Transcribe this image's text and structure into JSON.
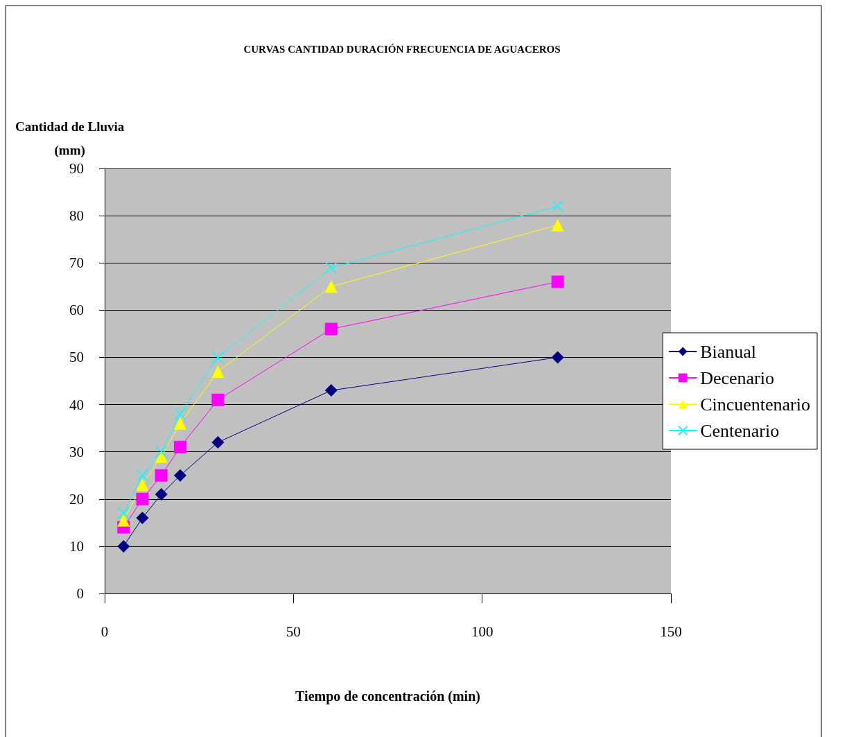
{
  "chart_data": {
    "type": "line",
    "title": "CURVAS CANTIDAD DURACIÓN FRECUENCIA DE AGUACEROS",
    "xlabel": "Tiempo de concentración (min)",
    "ylabel": "Cantidad de Lluvia\n(mm)",
    "x": [
      5,
      10,
      15,
      20,
      30,
      60,
      120
    ],
    "series": [
      {
        "name": "Bianual",
        "color": "#000080",
        "marker": "diamond",
        "values": [
          10,
          16,
          21,
          25,
          32,
          43,
          50
        ]
      },
      {
        "name": "Decenario",
        "color": "#ff00ff",
        "marker": "square",
        "values": [
          14,
          20,
          25,
          31,
          41,
          56,
          66
        ]
      },
      {
        "name": "Cincuentenario",
        "color": "#ffff00",
        "marker": "triangle",
        "values": [
          15.5,
          23,
          29,
          36,
          47,
          65,
          78
        ]
      },
      {
        "name": "Centenario",
        "color": "#00ffff",
        "marker": "cross",
        "values": [
          17,
          25,
          30,
          38,
          50,
          69,
          82
        ]
      }
    ],
    "xlim": [
      0,
      150
    ],
    "xticks": [
      0,
      50,
      100,
      150
    ],
    "ylim": [
      0,
      90
    ],
    "yticks": [
      0,
      10,
      20,
      30,
      40,
      50,
      60,
      70,
      80,
      90
    ],
    "grid": "y",
    "legend": "right",
    "line_style": "solid"
  }
}
